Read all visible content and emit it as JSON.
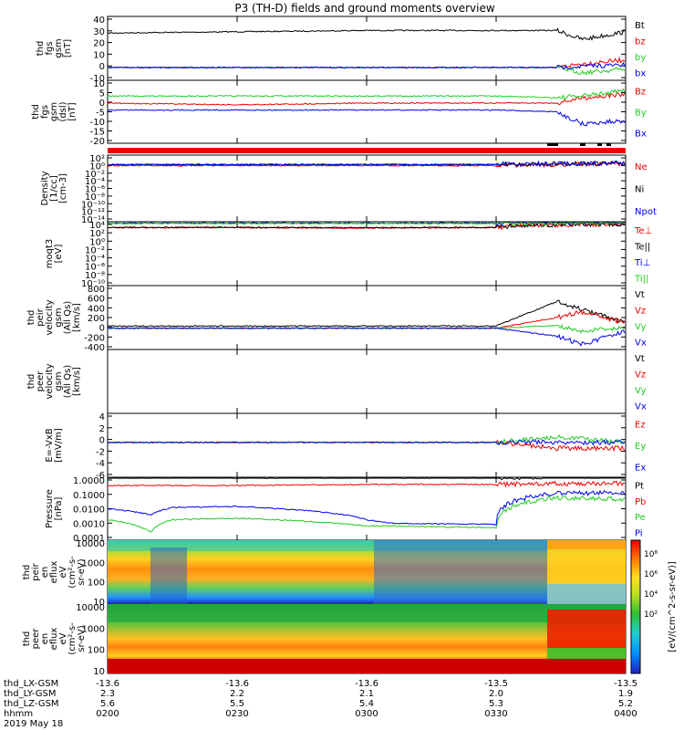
{
  "title": "P3 (TH-D) fields and ground moments overview",
  "date_label": "2019 May 18",
  "colorbar_label": "[eV/(cm^2-s-sr-eV)]",
  "colorbar_ticks": [
    "10⁸",
    "10⁶",
    "10⁴",
    "10²"
  ],
  "bottom_axis": {
    "row_labels": [
      "thd_LX-GSM",
      "thd_LY-GSM",
      "thd_LZ-GSM",
      "hhmm"
    ],
    "columns": [
      {
        "lx": "-13.6",
        "ly": "2.3",
        "lz": "5.6",
        "hhmm": "0200"
      },
      {
        "lx": "-13.6",
        "ly": "2.2",
        "lz": "5.5",
        "hhmm": "0230"
      },
      {
        "lx": "-13.6",
        "ly": "2.1",
        "lz": "5.4",
        "hhmm": "0300"
      },
      {
        "lx": "-13.5",
        "ly": "2.0",
        "lz": "5.3",
        "hhmm": "0330"
      },
      {
        "lx": "-13.5",
        "ly": "1.9",
        "lz": "5.2",
        "hhmm": "0400"
      }
    ]
  },
  "colors": {
    "black": "#000000",
    "red": "#ee0000",
    "green": "#22cc22",
    "blue": "#0000ee"
  },
  "chart_data": [
    {
      "type": "line",
      "ylabel": [
        "thd",
        "fgs",
        "gsm",
        "[nT]"
      ],
      "yticks": [
        "40",
        "30",
        "20",
        "10",
        "0",
        "-10"
      ],
      "ylim": [
        -10,
        40
      ],
      "legend": [
        {
          "name": "Bt",
          "color": "#000000"
        },
        {
          "name": "bz",
          "color": "#ee0000"
        },
        {
          "name": "by",
          "color": "#22cc22"
        },
        {
          "name": "bx",
          "color": "#0000ee"
        }
      ],
      "x": [
        "0200",
        "0230",
        "0300",
        "0330",
        "0344",
        "0350",
        "0400"
      ],
      "series": [
        {
          "name": "Bt",
          "values": [
            27,
            28,
            29,
            29,
            29,
            22,
            28
          ]
        },
        {
          "name": "bz",
          "values": [
            0,
            0,
            0,
            0,
            0,
            3,
            6
          ]
        },
        {
          "name": "by",
          "values": [
            0,
            0,
            0,
            0,
            0,
            -4,
            -1
          ]
        },
        {
          "name": "bx",
          "values": [
            0,
            0,
            0,
            0,
            0,
            1,
            2
          ]
        }
      ]
    },
    {
      "type": "line",
      "ylabel": [
        "thd",
        "fgs",
        "gsm",
        "(dsl)",
        "[nT]"
      ],
      "yticks": [
        "10",
        "5",
        "0",
        "-5",
        "-10",
        "-15",
        "-20"
      ],
      "ylim": [
        -23,
        13
      ],
      "legend": [
        {
          "name": "Bz",
          "color": "#ee0000"
        },
        {
          "name": "By",
          "color": "#22cc22"
        },
        {
          "name": "Bx",
          "color": "#0000ee"
        }
      ],
      "x": [
        "0200",
        "0230",
        "0300",
        "0330",
        "0344",
        "0350",
        "0400"
      ],
      "series": [
        {
          "name": "Bz",
          "values": [
            0,
            -1,
            0,
            0,
            0,
            3,
            5
          ]
        },
        {
          "name": "By",
          "values": [
            4,
            4,
            4,
            4,
            3,
            4,
            7
          ]
        },
        {
          "name": "Bx",
          "values": [
            -4,
            -4,
            -4,
            -4,
            -5,
            -12,
            -10
          ]
        }
      ]
    },
    {
      "type": "line",
      "ylabel": [
        "Density",
        "[1/cc]",
        "[cm-3]"
      ],
      "yticks": [
        "10²",
        "10⁰",
        "10⁻²",
        "10⁻⁴",
        "10⁻⁶",
        "10⁻⁸",
        "10⁻¹⁰",
        "10⁻¹²",
        "10⁻¹⁴"
      ],
      "ylim": [
        -14,
        2
      ],
      "yscale": "log",
      "legend": [
        {
          "name": "Ne",
          "color": "#ee0000"
        },
        {
          "name": "Ni",
          "color": "#000000"
        },
        {
          "name": "Npot",
          "color": "#0000ee"
        }
      ],
      "x": [
        "0200",
        "0230",
        "0300",
        "0330",
        "0344",
        "0400"
      ],
      "series": [
        {
          "name": "Ne",
          "values": [
            0.3,
            0.3,
            0.3,
            0.3,
            0.5,
            1
          ]
        },
        {
          "name": "Ni",
          "values": [
            0.5,
            0.5,
            0.5,
            0.5,
            0.8,
            1
          ]
        },
        {
          "name": "Npot",
          "values": [
            0.6,
            0.6,
            0.6,
            0.6,
            0.9,
            1.2
          ]
        }
      ]
    },
    {
      "type": "line",
      "ylabel": [
        "moqt3",
        "[eV]"
      ],
      "yticks": [
        "10⁴",
        "10²",
        "10⁰",
        "10⁻²",
        "10⁻⁴",
        "10⁻⁶",
        "10⁻⁸",
        "10⁻¹⁰"
      ],
      "ylim": [
        -10,
        4
      ],
      "yscale": "log",
      "legend": [
        {
          "name": "Te⊥",
          "color": "#ee0000"
        },
        {
          "name": "Te||",
          "color": "#000000"
        },
        {
          "name": "Ti⊥",
          "color": "#0000ee"
        },
        {
          "name": "Ti||",
          "color": "#22cc22"
        }
      ],
      "x": [
        "0200",
        "0230",
        "0300",
        "0330",
        "0344",
        "0400"
      ],
      "series": [
        {
          "name": "Te⊥",
          "values": [
            500,
            500,
            400,
            500,
            2000,
            3000
          ]
        },
        {
          "name": "Te||",
          "values": [
            600,
            600,
            500,
            600,
            2500,
            3500
          ]
        },
        {
          "name": "Ti⊥",
          "values": [
            5000,
            5000,
            5000,
            5000,
            8000,
            10000
          ]
        },
        {
          "name": "Ti||",
          "values": [
            4000,
            4000,
            4000,
            4000,
            7000,
            9000
          ]
        }
      ]
    },
    {
      "type": "line",
      "ylabel": [
        "thd",
        "peir",
        "velocity",
        "gsm",
        "(All Qs)",
        "[km/s]"
      ],
      "yticks": [
        "800",
        "600",
        "400",
        "200",
        "0",
        "-200",
        "-400"
      ],
      "ylim": [
        -400,
        800
      ],
      "legend": [
        {
          "name": "Vt",
          "color": "#000000"
        },
        {
          "name": "Vz",
          "color": "#ee0000"
        },
        {
          "name": "Vy",
          "color": "#22cc22"
        },
        {
          "name": "Vx",
          "color": "#0000ee"
        }
      ],
      "x": [
        "0200",
        "0230",
        "0300",
        "0330",
        "0344",
        "0350",
        "0400"
      ],
      "series": [
        {
          "name": "Vt",
          "values": [
            40,
            40,
            40,
            40,
            500,
            350,
            100
          ]
        },
        {
          "name": "Vz",
          "values": [
            0,
            0,
            0,
            0,
            200,
            300,
            100
          ]
        },
        {
          "name": "Vy",
          "values": [
            0,
            0,
            0,
            0,
            50,
            -50,
            0
          ]
        },
        {
          "name": "Vx",
          "values": [
            0,
            0,
            0,
            0,
            -150,
            -300,
            -50
          ]
        }
      ]
    },
    {
      "type": "line",
      "ylabel": [
        "thd",
        "peer",
        "velocity",
        "gsm",
        "(All Qs)",
        "[km/s]"
      ],
      "legend": [
        {
          "name": "Vt",
          "color": "#000000"
        },
        {
          "name": "Vz",
          "color": "#ee0000"
        },
        {
          "name": "Vy",
          "color": "#22cc22"
        },
        {
          "name": "Vx",
          "color": "#0000ee"
        }
      ],
      "series": []
    },
    {
      "type": "line",
      "ylabel": [
        "E=-VxB",
        "[mV/m]"
      ],
      "yticks": [
        "4",
        "2",
        "0",
        "-2",
        "-4",
        "-6"
      ],
      "ylim": [
        -6,
        5
      ],
      "legend": [
        {
          "name": "Ez",
          "color": "#ee0000"
        },
        {
          "name": "Ey",
          "color": "#22cc22"
        },
        {
          "name": "Ex",
          "color": "#0000ee"
        }
      ],
      "x": [
        "0200",
        "0230",
        "0300",
        "0330",
        "0344",
        "0400"
      ],
      "series": [
        {
          "name": "Ez",
          "values": [
            0,
            0,
            0,
            0,
            -1,
            -1
          ]
        },
        {
          "name": "Ey",
          "values": [
            0,
            0,
            0,
            0,
            1,
            0
          ]
        },
        {
          "name": "Ex",
          "values": [
            0,
            0,
            0,
            0,
            0,
            0
          ]
        }
      ]
    },
    {
      "type": "line",
      "ylabel": [
        "Pressure",
        "[nPa]"
      ],
      "yticks": [
        "1.0000",
        "0.1000",
        "0.0100",
        "0.0010",
        "0.0001"
      ],
      "ylim": [
        -4,
        0
      ],
      "yscale": "log",
      "legend": [
        {
          "name": "Pt",
          "color": "#000000"
        },
        {
          "name": "Pb",
          "color": "#ee0000"
        },
        {
          "name": "Pe",
          "color": "#22cc22"
        },
        {
          "name": "Pi",
          "color": "#0000ee"
        }
      ],
      "x": [
        "0200",
        "0210",
        "0215",
        "0230",
        "0300",
        "0305",
        "0330",
        "0344",
        "0400"
      ],
      "series": [
        {
          "name": "Pt",
          "values": [
            0.9,
            0.9,
            0.9,
            0.9,
            0.9,
            0.9,
            0.9,
            1.1,
            1.1
          ]
        },
        {
          "name": "Pb",
          "values": [
            0.3,
            0.3,
            0.3,
            0.3,
            0.35,
            0.35,
            0.35,
            0.4,
            0.4
          ]
        },
        {
          "name": "Pe",
          "values": [
            0.002,
            0.0003,
            0.002,
            0.0025,
            0.0008,
            0.0008,
            0.0006,
            0.05,
            0.04
          ]
        },
        {
          "name": "Pi",
          "values": [
            0.01,
            0.004,
            0.012,
            0.014,
            0.002,
            0.0012,
            0.001,
            0.1,
            0.1
          ]
        }
      ]
    },
    {
      "type": "heatmap",
      "ylabel": [
        "thd",
        "peir",
        "en",
        "eflux",
        "eV",
        "(cm²-s-",
        "sr-eV)"
      ],
      "yticks": [
        "10000",
        "1000",
        "100",
        "10"
      ],
      "yscale": "log",
      "ylim": [
        5,
        25000
      ]
    },
    {
      "type": "heatmap",
      "ylabel": [
        "thd",
        "peer",
        "en",
        "eflux",
        "eV",
        "(cm²-s-",
        "sr-eV)"
      ],
      "yticks": [
        "10000",
        "1000",
        "100",
        "10"
      ],
      "yscale": "log",
      "ylim": [
        5,
        25000
      ]
    }
  ]
}
